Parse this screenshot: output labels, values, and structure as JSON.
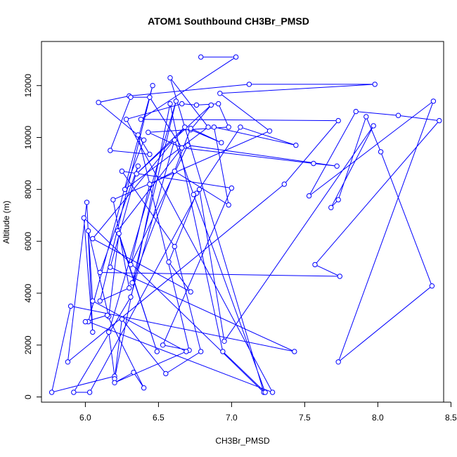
{
  "chart_data": {
    "type": "scatter",
    "title": "ATOM1 Southbound CH3Br_PMSD",
    "xlabel": "CH3Br_PMSD",
    "ylabel": "Altitude (m)",
    "xlim": [
      5.7,
      8.45
    ],
    "ylim": [
      -200,
      13700
    ],
    "xticks": [
      6.0,
      6.5,
      7.0,
      7.5,
      8.0,
      8.5
    ],
    "xtick_labels": [
      "6.0",
      "6.5",
      "7.0",
      "7.5",
      "8.0",
      "8.5"
    ],
    "yticks": [
      0,
      2000,
      4000,
      6000,
      8000,
      10000,
      12000
    ],
    "ytick_labels": [
      "0",
      "2000",
      "4000",
      "6000",
      "8000",
      "10000",
      "12000"
    ],
    "grid": false,
    "legend": "none",
    "connected": true,
    "colors": {
      "series": "#0000ff",
      "axes": "#000000",
      "background": "#ffffff"
    },
    "series": [
      {
        "x": [
          6.79,
          7.03,
          6.38,
          7.73,
          7.36,
          5.88,
          6.01,
          6.05,
          5.99,
          7.22,
          6.58,
          6.84,
          6.27,
          6.4,
          6.09,
          6.3,
          7.12,
          7.98,
          6.92,
          7.26,
          6.19,
          6.3,
          6.1,
          6.46,
          6.02,
          7.28,
          6.28,
          6.66,
          6.76,
          6.91,
          6.98,
          6.43,
          6.66,
          7.56,
          7.72,
          6.7,
          6.31,
          6.44,
          6.61,
          6.98,
          6.88,
          7.44,
          7.06,
          6.76,
          6.57,
          6.72,
          6.05,
          6.68,
          6.35,
          6.86,
          6.72,
          6.93,
          6.72,
          6.32,
          6.62,
          6.16,
          6.2,
          5.77,
          5.9,
          7.43,
          6.17,
          6.36,
          6.1,
          7.74,
          7.57,
          8.42,
          8.14,
          7.85,
          7.53,
          8.38,
          7.73,
          8.37,
          8.02,
          7.92,
          7.73,
          7.68,
          7.97,
          6.95,
          6.78,
          6.03,
          5.92,
          6.31,
          6.61,
          6.74,
          7.23,
          6.94,
          6.58,
          6.2,
          6.25,
          6.55,
          6.79,
          6.61,
          6.25,
          7.0,
          6.53,
          6.71,
          6.36,
          6.44,
          6.17,
          6.31,
          6.44,
          6.66,
          6.22,
          6.49,
          6.23,
          6.16,
          6.02,
          6.05,
          6.69,
          6.2,
          6.33,
          6.4,
          6.15,
          6.0
        ],
        "y": [
          13100,
          13100,
          10700,
          10650,
          8200,
          1350,
          7500,
          2500,
          6900,
          180,
          12300,
          10400,
          8000,
          9900,
          11350,
          11600,
          12050,
          12050,
          11700,
          10250,
          7600,
          4200,
          3700,
          12000,
          2900,
          180,
          10700,
          11300,
          11250,
          11300,
          10400,
          10200,
          9600,
          9000,
          8900,
          9700,
          5100,
          8200,
          8700,
          7400,
          10400,
          9700,
          10400,
          7850,
          5200,
          4050,
          6100,
          10400,
          8600,
          11250,
          10300,
          9800,
          10350,
          4400,
          11400,
          2500,
          800,
          180,
          3500,
          1750,
          5000,
          8900,
          4800,
          4650,
          5100,
          10650,
          10850,
          11000,
          7750,
          11400,
          1350,
          4280,
          9450,
          10800,
          7600,
          7300,
          10450,
          2150,
          8000,
          180,
          180,
          3850,
          9900,
          7800,
          180,
          1750,
          11300,
          700,
          3000,
          900,
          1750,
          5800,
          8700,
          8050,
          2000,
          1800,
          10100,
          9350,
          9500,
          11550,
          11550,
          9600,
          6400,
          1750,
          6300,
          3100,
          6400,
          3700,
          1750,
          550,
          950,
          350,
          3150,
          2900
        ]
      }
    ]
  }
}
